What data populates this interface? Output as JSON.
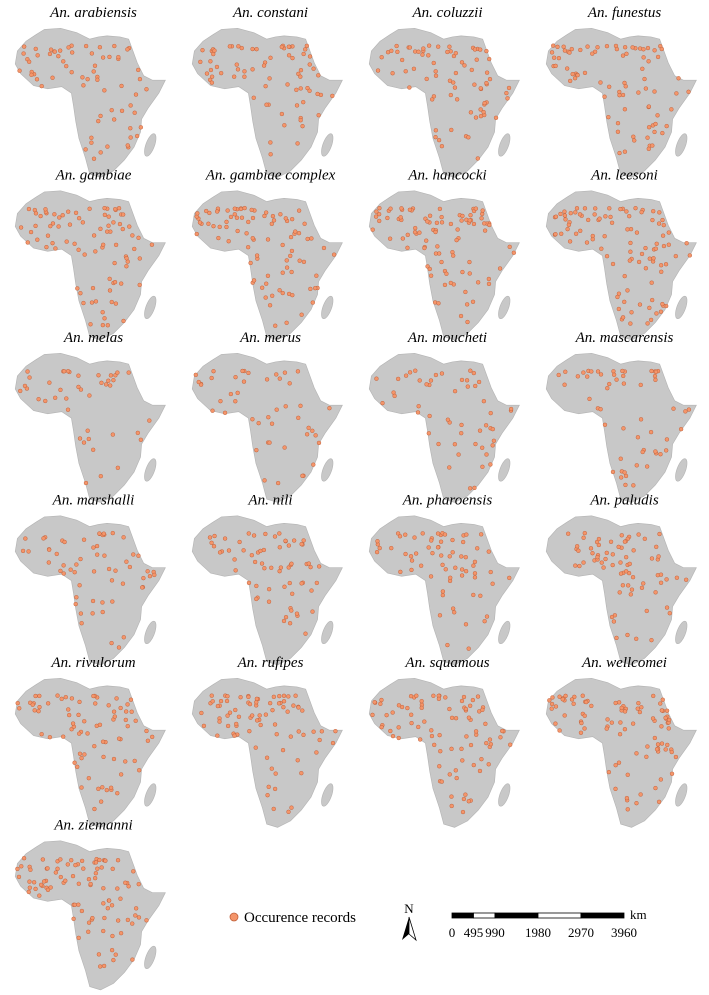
{
  "panels": [
    {
      "title": "An. arabiensis"
    },
    {
      "title": "An. constani"
    },
    {
      "title": "An. coluzzii"
    },
    {
      "title": "An. funestus"
    },
    {
      "title": "An. gambiae"
    },
    {
      "title": "An. gambiae complex"
    },
    {
      "title": "An. hancocki"
    },
    {
      "title": "An. leesoni"
    },
    {
      "title": "An. melas"
    },
    {
      "title": "An. merus"
    },
    {
      "title": "An. moucheti"
    },
    {
      "title": "An. mascarensis"
    },
    {
      "title": "An. marshalli"
    },
    {
      "title": "An. nili"
    },
    {
      "title": "An. pharoensis"
    },
    {
      "title": "An. paludis"
    },
    {
      "title": "An. rivulorum"
    },
    {
      "title": "An. rufipes"
    },
    {
      "title": "An. squamous"
    },
    {
      "title": "An. wellcomei"
    },
    {
      "title": "An. ziemanni"
    }
  ],
  "legend": {
    "label": "Occurence records"
  },
  "north_arrow": {
    "label": "N"
  },
  "scale_bar": {
    "ticks": [
      0,
      495,
      990,
      1980,
      2970,
      3960
    ],
    "unit": "km"
  }
}
